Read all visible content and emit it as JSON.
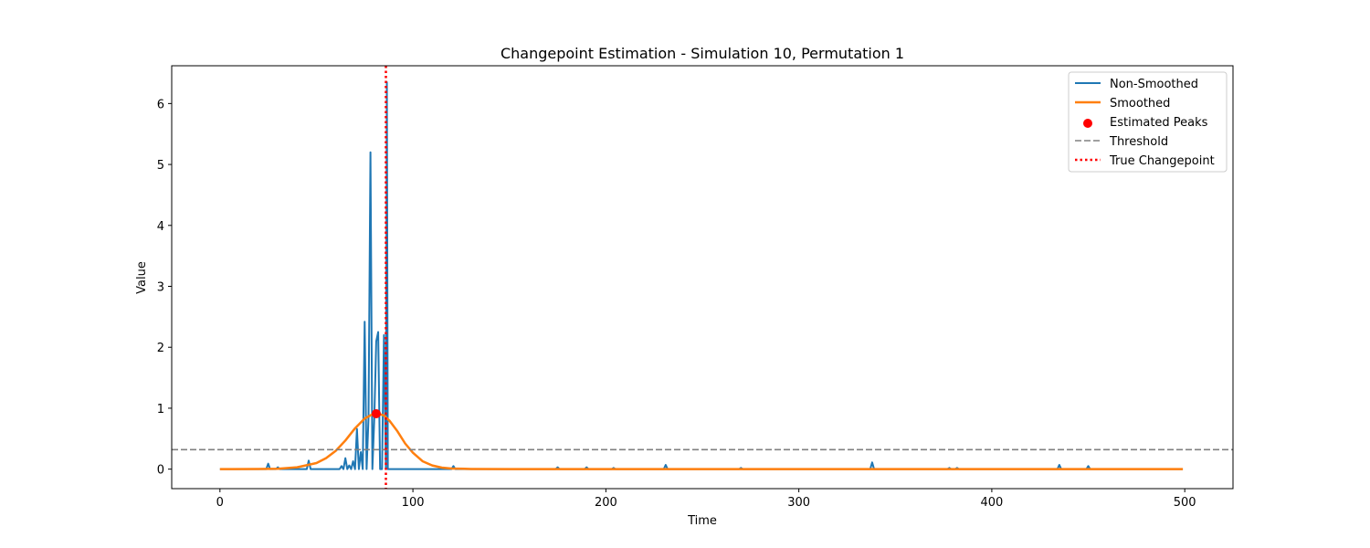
{
  "chart_data": {
    "type": "line",
    "title": "Changepoint Estimation - Simulation 10, Permutation 1",
    "xlabel": "Time",
    "ylabel": "Value",
    "xlim": [
      -25,
      525
    ],
    "ylim": [
      -0.32,
      6.62
    ],
    "xticks": [
      0,
      100,
      200,
      300,
      400,
      500
    ],
    "yticks": [
      0,
      1,
      2,
      3,
      4,
      5,
      6
    ],
    "grid": false,
    "legend_position": "top-right",
    "colors": {
      "non_smoothed": "#1f77b4",
      "smoothed": "#ff7f0e",
      "peaks": "#ff0000",
      "threshold": "#808080",
      "true_changepoint": "#ff0000"
    },
    "legend": [
      {
        "key": "non_smoothed",
        "label": "Non-Smoothed"
      },
      {
        "key": "smoothed",
        "label": "Smoothed"
      },
      {
        "key": "peaks",
        "label": "Estimated Peaks"
      },
      {
        "key": "threshold",
        "label": "Threshold"
      },
      {
        "key": "true_changepoint",
        "label": "True Changepoint"
      }
    ],
    "series": [
      {
        "name": "Non-Smoothed",
        "points": [
          [
            0,
            0
          ],
          [
            24,
            0
          ],
          [
            25,
            0.09
          ],
          [
            26,
            0
          ],
          [
            29,
            0
          ],
          [
            30,
            0.03
          ],
          [
            31,
            0
          ],
          [
            45,
            0
          ],
          [
            46,
            0.14
          ],
          [
            47,
            0
          ],
          [
            62,
            0
          ],
          [
            63,
            0.05
          ],
          [
            64,
            0
          ],
          [
            65,
            0.18
          ],
          [
            66,
            0
          ],
          [
            67,
            0.06
          ],
          [
            68,
            0
          ],
          [
            69,
            0.13
          ],
          [
            70,
            0
          ],
          [
            71,
            0.66
          ],
          [
            72,
            0
          ],
          [
            73,
            0.28
          ],
          [
            74,
            0
          ],
          [
            75,
            2.42
          ],
          [
            76,
            0
          ],
          [
            77,
            0.85
          ],
          [
            78,
            5.2
          ],
          [
            79,
            0
          ],
          [
            80,
            0.85
          ],
          [
            81,
            2.1
          ],
          [
            82,
            2.25
          ],
          [
            83,
            0
          ],
          [
            84,
            0
          ],
          [
            85,
            2.2
          ],
          [
            86,
            0
          ],
          [
            86.5,
            6.35
          ],
          [
            87,
            0
          ],
          [
            120,
            0
          ],
          [
            121,
            0.05
          ],
          [
            122,
            0
          ],
          [
            174,
            0
          ],
          [
            175,
            0.03
          ],
          [
            176,
            0
          ],
          [
            189,
            0
          ],
          [
            190,
            0.03
          ],
          [
            191,
            0
          ],
          [
            203,
            0
          ],
          [
            204,
            0.02
          ],
          [
            205,
            0
          ],
          [
            230,
            0
          ],
          [
            231,
            0.07
          ],
          [
            232,
            0
          ],
          [
            269,
            0
          ],
          [
            270,
            0.02
          ],
          [
            271,
            0
          ],
          [
            337,
            0
          ],
          [
            338,
            0.11
          ],
          [
            339,
            0
          ],
          [
            377,
            0
          ],
          [
            378,
            0.02
          ],
          [
            379,
            0
          ],
          [
            381,
            0
          ],
          [
            382,
            0.02
          ],
          [
            383,
            0
          ],
          [
            434,
            0
          ],
          [
            435,
            0.07
          ],
          [
            436,
            0
          ],
          [
            449,
            0
          ],
          [
            450,
            0.05
          ],
          [
            451,
            0
          ],
          [
            499,
            0
          ]
        ]
      },
      {
        "name": "Smoothed",
        "points": [
          [
            0,
            0
          ],
          [
            20,
            0.002
          ],
          [
            30,
            0.006
          ],
          [
            40,
            0.03
          ],
          [
            50,
            0.1
          ],
          [
            55,
            0.18
          ],
          [
            60,
            0.3
          ],
          [
            65,
            0.47
          ],
          [
            70,
            0.67
          ],
          [
            75,
            0.83
          ],
          [
            79,
            0.9
          ],
          [
            82,
            0.91
          ],
          [
            85,
            0.88
          ],
          [
            88,
            0.79
          ],
          [
            92,
            0.62
          ],
          [
            96,
            0.42
          ],
          [
            100,
            0.27
          ],
          [
            105,
            0.13
          ],
          [
            110,
            0.06
          ],
          [
            115,
            0.025
          ],
          [
            120,
            0.01
          ],
          [
            130,
            0.003
          ],
          [
            150,
            0
          ],
          [
            499,
            0
          ]
        ]
      }
    ],
    "estimated_peaks": [
      [
        81,
        0.91
      ]
    ],
    "threshold": 0.32,
    "true_changepoint": 86
  }
}
